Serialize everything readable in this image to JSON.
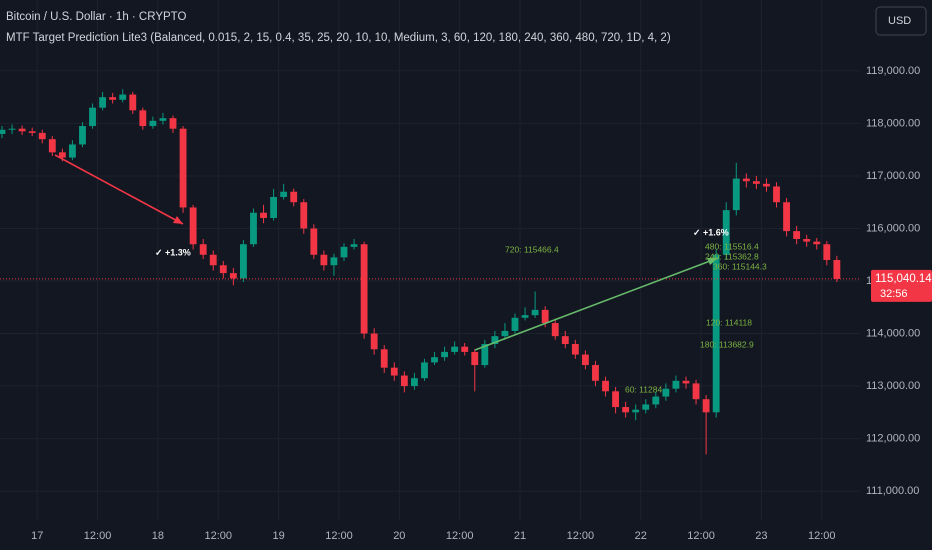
{
  "header": {
    "title": "Bitcoin / U.S. Dollar · 1h · CRYPTO",
    "indicator": "MTF Target Prediction Lite3 (Balanced, 0.015, 2, 15, 0.4, 35, 25, 20, 10, 10, Medium, 3, 60, 120, 180, 240, 360, 480, 720, 1D, 4, 2)",
    "currency": "USD",
    "countdown": "32:56"
  },
  "chart_data": {
    "type": "candlestick",
    "up_color": "#089981",
    "down_color": "#f23645",
    "grid": true,
    "x": [
      -7,
      -5,
      -3,
      -1,
      1,
      3,
      5,
      7,
      9,
      11,
      13,
      15,
      17,
      19,
      21,
      23,
      25,
      27,
      29,
      31,
      33,
      35,
      37,
      39,
      41,
      43,
      45,
      47,
      49,
      51,
      53,
      55,
      57,
      59,
      61,
      63,
      65,
      67,
      69,
      71,
      73,
      75,
      77,
      79,
      81,
      83,
      85,
      87,
      89,
      91,
      93,
      95,
      97,
      99,
      101,
      103,
      105,
      107,
      109,
      111,
      113,
      115,
      117,
      119,
      121,
      123,
      125,
      127,
      129,
      131,
      133,
      135,
      137,
      139,
      141,
      143,
      145,
      147,
      149,
      151,
      153,
      155,
      157,
      159
    ],
    "open": [
      117800,
      117880,
      117900,
      117850,
      117820,
      117700,
      117450,
      117350,
      117600,
      117950,
      118300,
      118500,
      118450,
      118550,
      118250,
      117950,
      118050,
      118100,
      117900,
      116400,
      115700,
      115500,
      115300,
      115150,
      115050,
      115700,
      116300,
      116200,
      116600,
      116700,
      116500,
      116000,
      115500,
      115300,
      115450,
      115650,
      115700,
      114000,
      113700,
      113350,
      113200,
      113000,
      113150,
      113450,
      113550,
      113650,
      113750,
      113650,
      113400,
      113800,
      113950,
      114050,
      114300,
      114350,
      114450,
      114200,
      113950,
      113800,
      113600,
      113400,
      113100,
      112900,
      112600,
      112500,
      112550,
      112650,
      112800,
      112950,
      113100,
      113050,
      112750,
      112500,
      115500,
      116350,
      116950,
      116900,
      116850,
      116800,
      116500,
      115950,
      115800,
      115750,
      115700,
      115400
    ],
    "high": [
      117950,
      117980,
      117960,
      117920,
      117880,
      117760,
      117520,
      117680,
      118020,
      118380,
      118600,
      118580,
      118650,
      118600,
      118300,
      118130,
      118200,
      118150,
      117950,
      116450,
      115800,
      115580,
      115380,
      115250,
      115780,
      116380,
      116450,
      116750,
      116850,
      116760,
      116560,
      116080,
      115580,
      115520,
      115720,
      115800,
      115750,
      114100,
      113780,
      113450,
      113280,
      113250,
      113520,
      113650,
      113750,
      113850,
      113820,
      113700,
      113880,
      114050,
      114200,
      114380,
      114500,
      114800,
      114520,
      114280,
      114050,
      113880,
      113680,
      113480,
      113180,
      112980,
      112700,
      112650,
      112750,
      112880,
      113050,
      113200,
      113180,
      113120,
      112830,
      115600,
      116500,
      117250,
      117050,
      117000,
      116950,
      116880,
      116580,
      116050,
      115880,
      115820,
      115760,
      115480
    ],
    "low": [
      117720,
      117800,
      117780,
      117760,
      117620,
      117380,
      117280,
      117300,
      117550,
      117900,
      118250,
      118380,
      118400,
      118180,
      117880,
      117900,
      117980,
      117820,
      116300,
      115600,
      115420,
      115200,
      115050,
      114920,
      114980,
      115650,
      116100,
      116150,
      116550,
      116420,
      115900,
      115420,
      115200,
      115100,
      115380,
      115600,
      113900,
      113600,
      113250,
      113100,
      112880,
      112930,
      113100,
      113400,
      113480,
      113600,
      113580,
      112900,
      113350,
      113720,
      113880,
      114000,
      114250,
      114300,
      114120,
      113880,
      113720,
      113520,
      113320,
      113000,
      112800,
      112480,
      112400,
      112350,
      112480,
      112580,
      112720,
      112880,
      112950,
      112650,
      111700,
      112400,
      115400,
      116250,
      116780,
      116750,
      116700,
      116400,
      115850,
      115700,
      115650,
      115600,
      115300,
      114980
    ],
    "close": [
      117880,
      117900,
      117850,
      117820,
      117700,
      117450,
      117350,
      117600,
      117950,
      118300,
      118500,
      118450,
      118550,
      118250,
      117950,
      118050,
      118100,
      117900,
      116400,
      115700,
      115500,
      115300,
      115150,
      115050,
      115700,
      116300,
      116200,
      116600,
      116700,
      116500,
      116000,
      115500,
      115300,
      115450,
      115650,
      115700,
      114000,
      113700,
      113350,
      113200,
      113000,
      113150,
      113450,
      113550,
      113650,
      113750,
      113650,
      113400,
      113800,
      113950,
      114050,
      114300,
      114350,
      114450,
      114200,
      113950,
      113800,
      113600,
      113400,
      113100,
      112900,
      112600,
      112500,
      112550,
      112650,
      112800,
      112950,
      113100,
      113050,
      112750,
      112500,
      115500,
      116350,
      116950,
      116900,
      116850,
      116800,
      116500,
      115950,
      115800,
      115750,
      115700,
      115400,
      115040.14
    ],
    "last_price_label": "115,040.14",
    "xlim": [
      -7.4,
      163.6
    ],
    "ylim": [
      110450,
      120350
    ],
    "xticks": [
      {
        "value": 0,
        "label": "17"
      },
      {
        "value": 12,
        "label": "12:00"
      },
      {
        "value": 24,
        "label": "18"
      },
      {
        "value": 36,
        "label": "12:00"
      },
      {
        "value": 48,
        "label": "19"
      },
      {
        "value": 60,
        "label": "12:00"
      },
      {
        "value": 72,
        "label": "20"
      },
      {
        "value": 84,
        "label": "12:00"
      },
      {
        "value": 96,
        "label": "21"
      },
      {
        "value": 108,
        "label": "12:00"
      },
      {
        "value": 120,
        "label": "22"
      },
      {
        "value": 132,
        "label": "12:00"
      },
      {
        "value": 144,
        "label": "23"
      },
      {
        "value": 156,
        "label": "12:00"
      }
    ],
    "yticks": [
      {
        "value": 111000,
        "label": "111,000.00"
      },
      {
        "value": 112000,
        "label": "112,000.00"
      },
      {
        "value": 113000,
        "label": "113,000.00"
      },
      {
        "value": 114000,
        "label": "114,000.00"
      },
      {
        "value": 115000,
        "label": "115,000.00"
      },
      {
        "value": 116000,
        "label": "116,000.00"
      },
      {
        "value": 117000,
        "label": "117,000.00"
      },
      {
        "value": 118000,
        "label": "118,000.00"
      },
      {
        "value": 119000,
        "label": "119,000.00"
      }
    ],
    "annotations": [
      "✓ +1.3%",
      "✓ +1.6%",
      "720: 115466.4",
      "480: 115516.4",
      "240: 115362.8",
      "360: 115144.3",
      "120: 114118",
      "180: 113682.9",
      "60: 11284"
    ]
  }
}
